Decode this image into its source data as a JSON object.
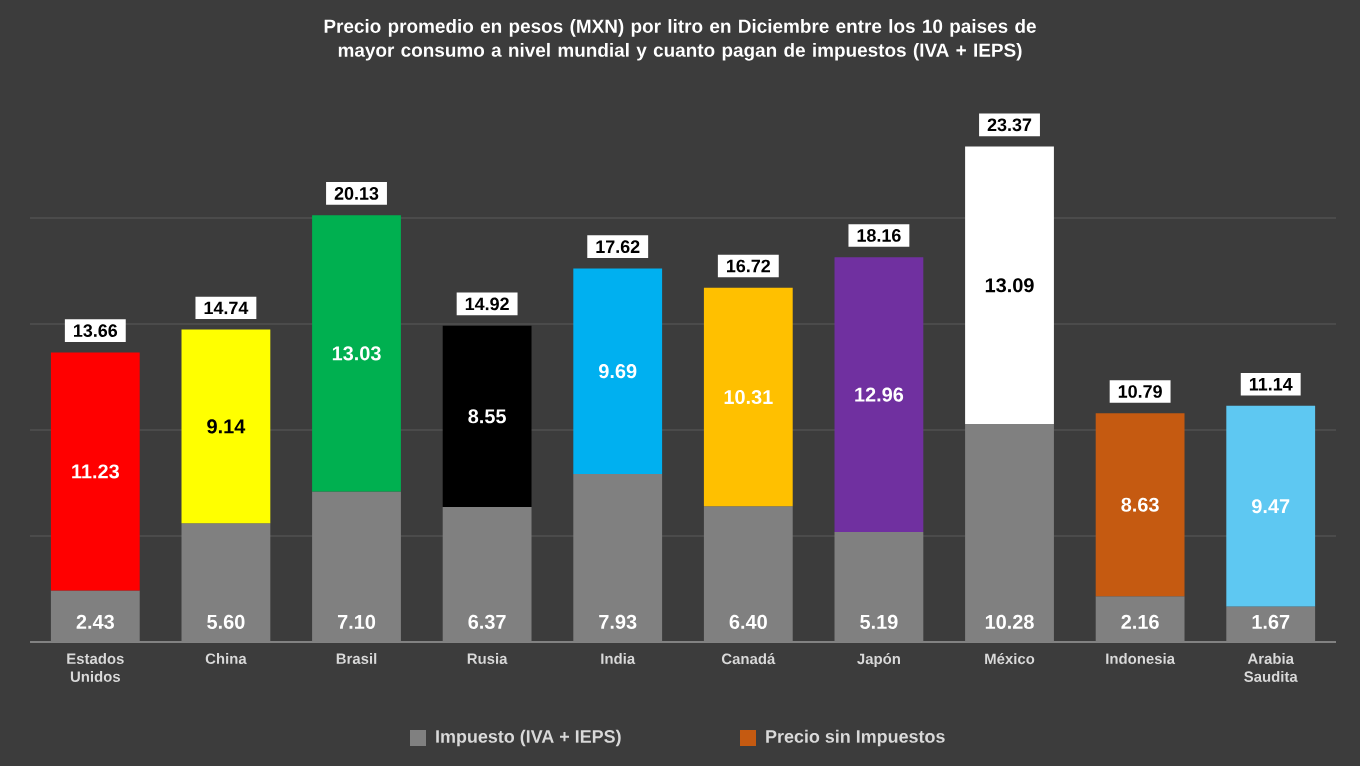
{
  "chart_data": {
    "type": "bar",
    "stacked": true,
    "title": "Precio promedio en pesos (MXN) por litro en Diciembre entre los 10 paises de mayor consumo a nivel mundial y cuanto pagan de impuestos (IVA + IEPS)",
    "categories": [
      "Estados Unidos",
      "China",
      "Brasil",
      "Rusia",
      "India",
      "Canadá",
      "Japón",
      "México",
      "Indonesia",
      "Arabia Saudita"
    ],
    "series": [
      {
        "name": "Impuesto (IVA + IEPS)",
        "color": "#808080",
        "values": [
          2.43,
          5.6,
          7.1,
          6.37,
          7.93,
          6.4,
          5.19,
          10.28,
          2.16,
          1.67
        ],
        "value_labels": [
          "2.43",
          "5.60",
          "7.10",
          "6.37",
          "7.93",
          "6.40",
          "5.19",
          "10.28",
          "2.16",
          "1.67"
        ]
      },
      {
        "name": "Precio sin Impuestos",
        "color": "#c55a11",
        "colors": [
          "#ff0000",
          "#ffff00",
          "#00b050",
          "#000000",
          "#00b0f0",
          "#ffc000",
          "#7030a0",
          "#ffffff",
          "#c55a11",
          "#5ec8f2"
        ],
        "values": [
          11.23,
          9.14,
          13.03,
          8.55,
          9.69,
          10.31,
          12.96,
          13.09,
          8.63,
          9.47
        ],
        "value_labels": [
          "11.23",
          "9.14",
          "13.03",
          "8.55",
          "9.69",
          "10.31",
          "12.96",
          "13.09",
          "8.63",
          "9.47"
        ]
      }
    ],
    "totals": [
      "13.66",
      "14.74",
      "20.13",
      "14.92",
      "17.62",
      "16.72",
      "18.16",
      "23.37",
      "10.79",
      "11.14"
    ],
    "ylim": [
      0,
      25
    ],
    "yticks": [
      {
        "value": 0,
        "label": null
      },
      {
        "value": 5,
        "label": null
      },
      {
        "value": 10,
        "label": null
      },
      {
        "value": 15,
        "label": null
      },
      {
        "value": 20,
        "label": null
      }
    ],
    "tick_labels": "x",
    "grid": "y",
    "legend": "bottom"
  }
}
